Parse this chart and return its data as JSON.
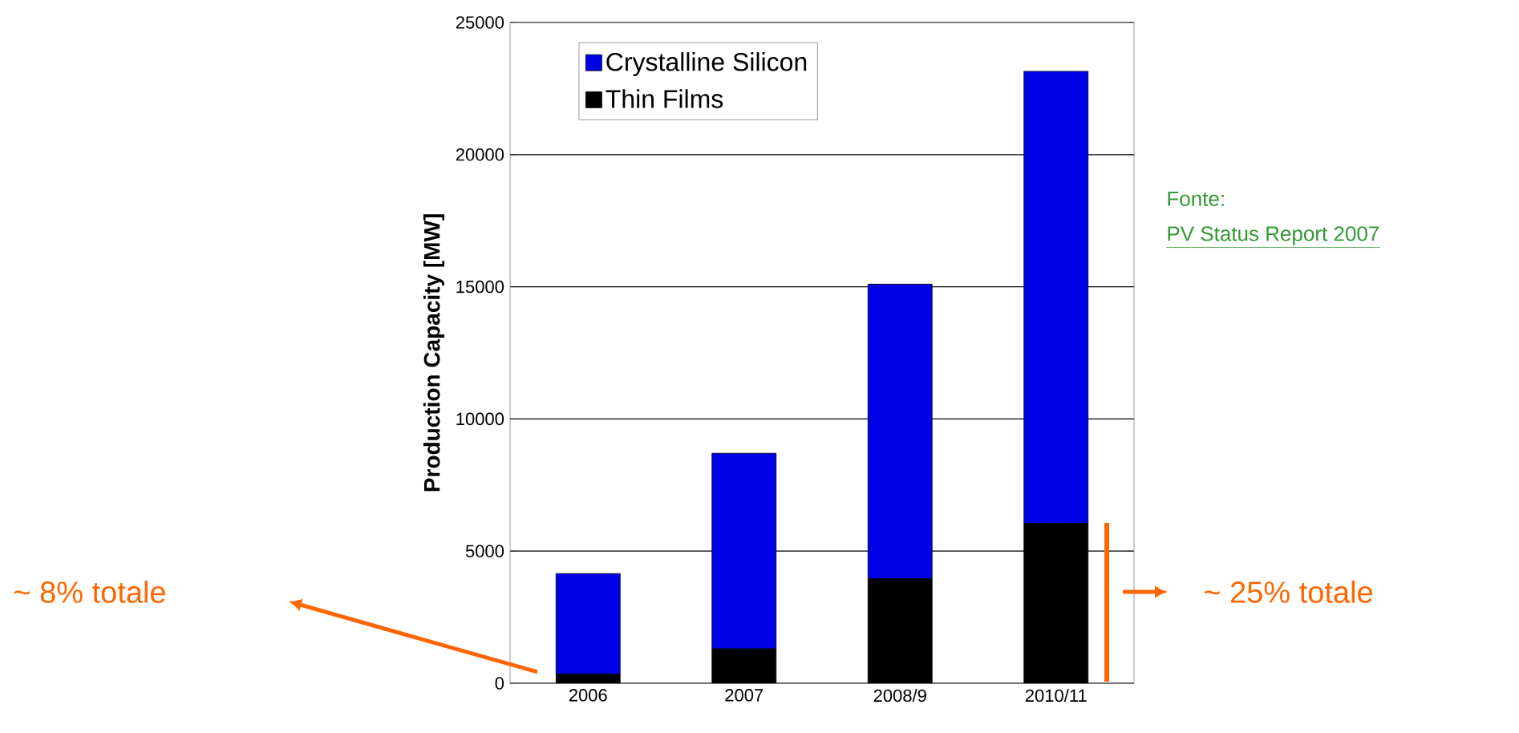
{
  "chart_data": {
    "type": "bar",
    "stacked": true,
    "ylabel": "Production Capacity [MW]",
    "categories": [
      "2006",
      "2007",
      "2008/9",
      "2010/11"
    ],
    "series": [
      {
        "name": "Thin Films",
        "color": "#000000",
        "values": [
          350,
          1300,
          3950,
          6050
        ]
      },
      {
        "name": "Crystalline Silicon",
        "color": "#0000e6",
        "values": [
          3800,
          7400,
          11150,
          17100
        ]
      }
    ],
    "ylim": [
      0,
      25000
    ],
    "yticks": [
      0,
      5000,
      10000,
      15000,
      20000,
      25000
    ],
    "grid": "y",
    "legend": "top left",
    "annotations": [
      "Fonte:",
      "PV Status Report 2007",
      "~ 8% totale",
      "~ 25% totale"
    ]
  }
}
